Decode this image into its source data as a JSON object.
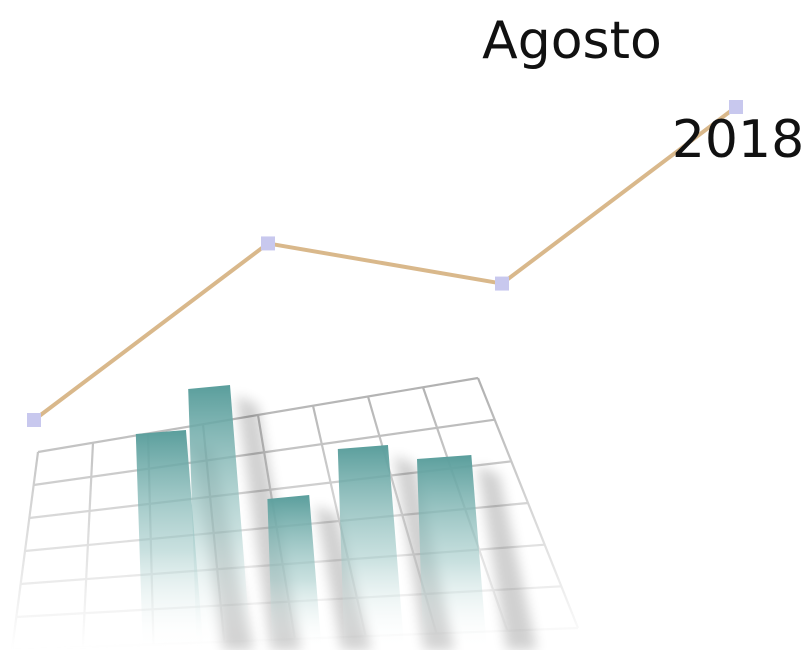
{
  "chart_data": [
    {
      "type": "bar",
      "title": "",
      "xlabel": "",
      "ylabel": "",
      "categories": [
        "",
        "",
        "",
        "",
        ""
      ],
      "values": [
        4.4,
        5.3,
        3.1,
        4.1,
        3.9
      ],
      "ylim": [
        0,
        6
      ],
      "grid": true,
      "colors": {
        "bar_top": "#5a9e9c",
        "bar_bottom": "#ffffff",
        "grid": "#808080"
      }
    },
    {
      "type": "line",
      "title": "",
      "xlabel": "",
      "ylabel": "",
      "x": [
        1,
        2,
        3,
        4
      ],
      "y": [
        1.0,
        5.4,
        4.4,
        8.8
      ],
      "ylim": [
        0,
        10
      ],
      "colors": {
        "line": "#d9b88b",
        "marker": "#c8c8ee"
      }
    }
  ],
  "header": {
    "month": "Agosto",
    "year": "2018"
  }
}
